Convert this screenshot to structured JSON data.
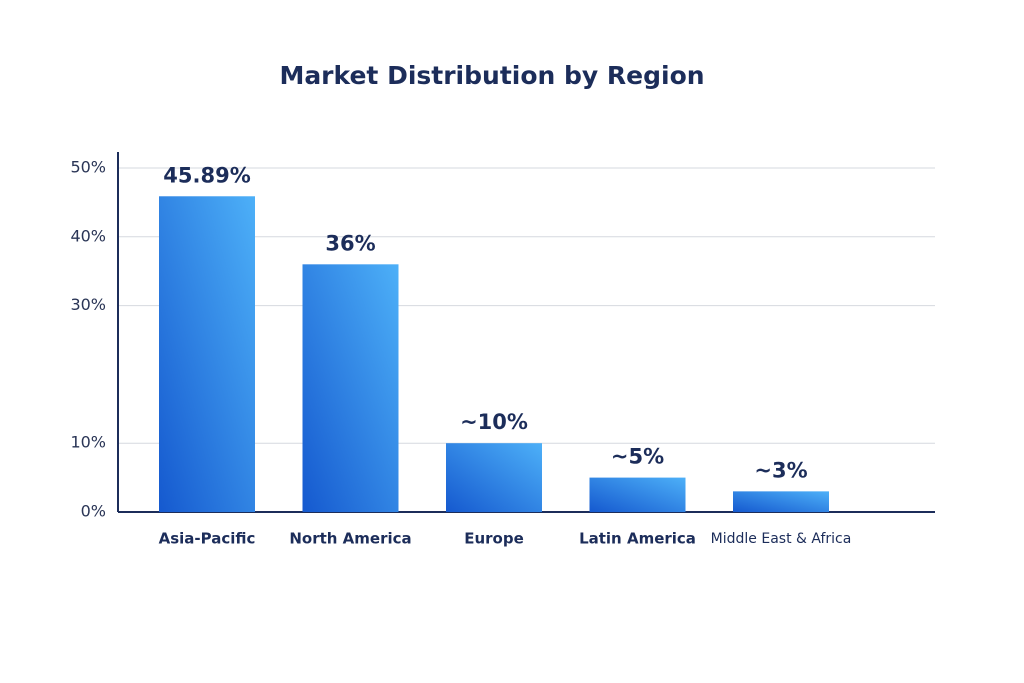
{
  "chart_data": {
    "type": "bar",
    "title": "Market Distribution by Region",
    "categories": [
      "Asia-Pacific",
      "North America",
      "Europe",
      "Latin America",
      "Middle East & Africa"
    ],
    "values": [
      45.89,
      36,
      10,
      5,
      3
    ],
    "value_labels": [
      "45.89%",
      "36%",
      "~10%",
      "~5%",
      "~3%"
    ],
    "color": "#2f86e8",
    "ylim": [
      0,
      50
    ],
    "yticks": [
      {
        "value": 0,
        "label": "0%"
      },
      {
        "value": 10,
        "label": "10%"
      },
      {
        "value": 30,
        "label": "30%"
      },
      {
        "value": 40,
        "label": "40%"
      },
      {
        "value": 50,
        "label": "50%"
      }
    ],
    "grid": true
  }
}
